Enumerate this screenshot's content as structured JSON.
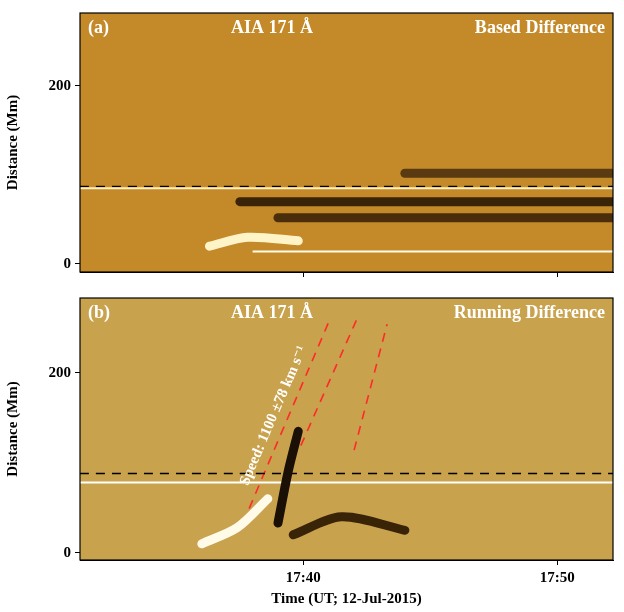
{
  "chart_data": [
    {
      "type": "line",
      "panel": "(a)",
      "title": "AIA 171 Å",
      "subtitle": "Based Difference",
      "y_label": "Distance (Mm)",
      "xlim": [
        31.2,
        52.2
      ],
      "xticks": [
        {
          "value": 40,
          "label": "17:40"
        },
        {
          "value": 50,
          "label": "17:50"
        }
      ],
      "ylim": [
        -9,
        282
      ],
      "yticks": [
        0,
        200
      ],
      "tick_labels": "y",
      "grid": false,
      "background": "#c48a2a",
      "series": [
        {
          "color": "#3a2408",
          "line_style": "thick",
          "x": [
            37.5,
            52.2
          ],
          "values": [
            70,
            70
          ]
        },
        {
          "color": "#4a2e0c",
          "line_style": "thick",
          "x": [
            39.0,
            52.2
          ],
          "values": [
            52,
            52
          ]
        },
        {
          "color": "#5a3a10",
          "line_style": "thick",
          "x": [
            44.0,
            52.2
          ],
          "values": [
            102,
            102
          ]
        },
        {
          "color": "#fff4c8",
          "line_style": "thick",
          "x": [
            36.3,
            37.8,
            39.8
          ],
          "values": [
            20,
            30,
            26
          ]
        },
        {
          "color": "#fffbe8",
          "line_style": "solid",
          "x": [
            38.0,
            52.2
          ],
          "values": [
            14,
            14
          ]
        },
        {
          "color": "#fff0c0",
          "line_style": "solid",
          "x": [
            31.2,
            52.2
          ],
          "values": [
            85,
            85
          ]
        },
        {
          "color": "#000000",
          "line_style": "dashed",
          "x": [
            31.2,
            52.2
          ],
          "values": [
            87,
            87
          ]
        }
      ]
    },
    {
      "type": "line",
      "panel": "(b)",
      "title": "AIA 171 Å",
      "subtitle": "Running Difference",
      "x_label": "Time (UT; 12-Jul-2015)",
      "y_label": "Distance (Mm)",
      "xlim": [
        31.2,
        52.2
      ],
      "xticks": [
        {
          "value": 40,
          "label": "17:40"
        },
        {
          "value": 50,
          "label": "17:50"
        }
      ],
      "ylim": [
        -8,
        283
      ],
      "yticks": [
        0,
        200
      ],
      "tick_labels": true,
      "grid": false,
      "background": "#c9a24e",
      "series": [
        {
          "color": "#fffbe8",
          "line_style": "thick",
          "x": [
            36.0,
            37.4,
            38.6
          ],
          "values": [
            10,
            28,
            60
          ]
        },
        {
          "color": "#1a1006",
          "line_style": "thick",
          "x": [
            39.0,
            39.4,
            39.8
          ],
          "values": [
            33,
            90,
            135
          ]
        },
        {
          "color": "#3a2408",
          "line_style": "thick",
          "x": [
            39.6,
            41.5,
            44.0
          ],
          "values": [
            20,
            40,
            25
          ]
        },
        {
          "color": "#ffffff",
          "line_style": "solid",
          "x": [
            31.2,
            52.2
          ],
          "values": [
            78,
            78
          ]
        },
        {
          "color": "#000000",
          "line_style": "dashed",
          "x": [
            31.2,
            52.2
          ],
          "values": [
            88,
            88
          ]
        },
        {
          "color": "#ff2a2a",
          "line_style": "dashed",
          "x": [
            37.62,
            41.04
          ],
          "values": [
            33,
            259
          ],
          "label": "Speed: 1100 ±78 km s⁻¹"
        },
        {
          "color": "#ff2a2a",
          "line_style": "dashed",
          "x": [
            39.9,
            42.1
          ],
          "values": [
            119,
            259
          ]
        },
        {
          "color": "#ff2a2a",
          "line_style": "dashed",
          "x": [
            42.0,
            43.3
          ],
          "values": [
            114,
            254
          ]
        }
      ]
    }
  ]
}
